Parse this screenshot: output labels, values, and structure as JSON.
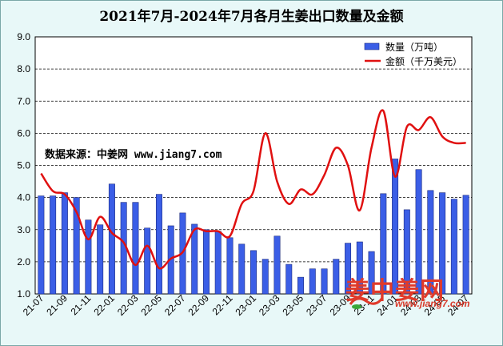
{
  "chart_data": {
    "type": "bar",
    "title": "2021年7月-2024年7月各月生姜出口数量及金额",
    "ylim": [
      1.0,
      9.0
    ],
    "yticks": [
      "1.0",
      "2.0",
      "3.0",
      "4.0",
      "5.0",
      "6.0",
      "7.0",
      "8.0",
      "9.0"
    ],
    "categories": [
      "21-07",
      "21-08",
      "21-09",
      "21-10",
      "21-11",
      "21-12",
      "22-01",
      "22-02",
      "22-03",
      "22-04",
      "22-05",
      "22-06",
      "22-07",
      "22-08",
      "22-09",
      "22-10",
      "22-11",
      "22-12",
      "23-01",
      "23-02",
      "23-03",
      "23-04",
      "23-05",
      "23-06",
      "23-07",
      "23-08",
      "23-09",
      "23-10",
      "23-11",
      "23-12",
      "24-01",
      "24-02",
      "24-03",
      "24-04",
      "24-05",
      "24-06",
      "24-07"
    ],
    "xtick_labels": [
      "21-07",
      "21-09",
      "21-11",
      "22-01",
      "22-03",
      "22-05",
      "22-07",
      "22-09",
      "22-11",
      "23-01",
      "23-03",
      "23-05",
      "23-07",
      "23-09",
      "23-11",
      "24-01",
      "24-03",
      "24-05",
      "24-07"
    ],
    "series": [
      {
        "name": "数量（万吨）",
        "type": "bar",
        "color": "#3b5ee6",
        "values": [
          4.05,
          4.05,
          4.15,
          4.0,
          3.3,
          3.15,
          4.42,
          3.85,
          3.85,
          3.05,
          4.1,
          3.12,
          3.52,
          3.17,
          3.0,
          2.95,
          2.75,
          2.55,
          2.35,
          2.08,
          2.8,
          1.92,
          1.52,
          1.78,
          1.78,
          2.08,
          2.58,
          2.62,
          2.32,
          4.12,
          5.2,
          3.62,
          4.87,
          4.22,
          4.15,
          3.95,
          4.07
        ]
      },
      {
        "name": "金额（千万美元）",
        "type": "line",
        "color": "#e01010",
        "values": [
          4.75,
          4.2,
          4.1,
          3.55,
          2.7,
          3.4,
          2.9,
          2.6,
          1.9,
          2.5,
          1.8,
          2.1,
          2.3,
          3.0,
          2.95,
          2.95,
          2.8,
          3.8,
          4.2,
          6.0,
          4.5,
          3.8,
          4.25,
          4.1,
          4.7,
          5.55,
          5.0,
          3.6,
          5.55,
          6.7,
          4.65,
          6.2,
          6.1,
          6.5,
          5.9,
          5.7,
          5.7
        ]
      }
    ],
    "legend_position": "top-right",
    "grid": true
  },
  "annotation": "数据来源：中姜网 www.jiang7.com",
  "watermark": {
    "name": "中姜网",
    "url": "www.jiang7.com",
    "glyph": "姜"
  }
}
